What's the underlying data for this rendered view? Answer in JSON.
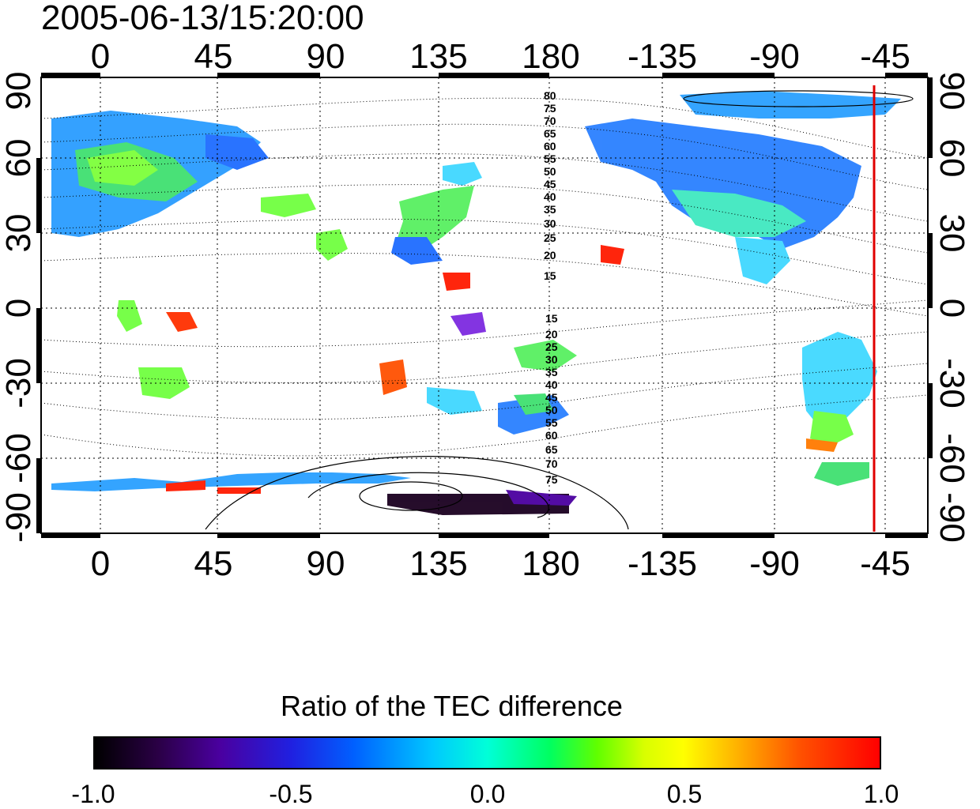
{
  "title": "2005-06-13/15:20:00",
  "map": {
    "top_longitude_labels": [
      "0",
      "45",
      "90",
      "135",
      "180",
      "-135",
      "-90",
      "-45"
    ],
    "bottom_longitude_labels": [
      "0",
      "45",
      "90",
      "135",
      "180",
      "-135",
      "-90",
      "-45"
    ],
    "left_latitude_labels": [
      "90",
      "60",
      "30",
      "0",
      "-30",
      "-60",
      "-90"
    ],
    "right_latitude_labels": [
      "90",
      "60",
      "30",
      "0",
      "-30",
      "-60",
      "-90"
    ],
    "north_contour_labels": [
      "80",
      "75",
      "70",
      "65",
      "60",
      "55",
      "50",
      "45",
      "40",
      "35",
      "30",
      "25",
      "20",
      "15"
    ],
    "south_contour_labels": [
      "15",
      "20",
      "25",
      "30",
      "35",
      "40",
      "45",
      "50",
      "55",
      "60",
      "65",
      "70",
      "75"
    ],
    "marker_line_color": "#e00000",
    "marker_longitude": -50,
    "gridlines": "dotted",
    "basemap": "coastlines"
  },
  "colorbar": {
    "title": "Ratio of the TEC difference",
    "tick_labels": [
      "-1.0",
      "-0.5",
      "0.0",
      "0.5",
      "1.0"
    ],
    "range": [
      -1.0,
      1.0
    ],
    "colormap": [
      "#000000",
      "#4a00a0",
      "#0060ff",
      "#00ffd8",
      "#60ff00",
      "#ffff00",
      "#ff5000",
      "#ff0000"
    ]
  }
}
